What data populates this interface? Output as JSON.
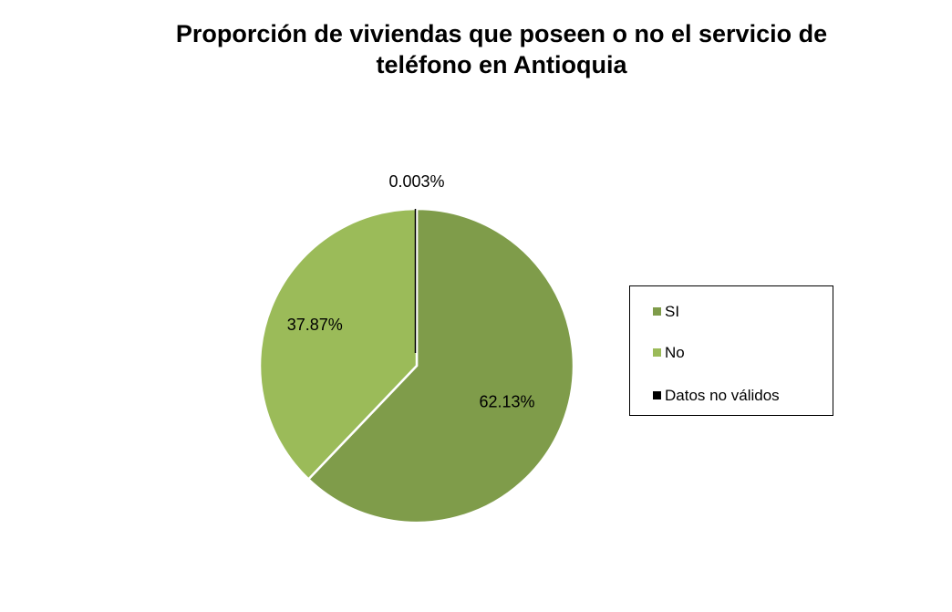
{
  "chart_data": {
    "type": "pie",
    "title_lines": [
      "Proporción de viviendas que poseen o no el servicio de",
      "teléfono en Antioquia"
    ],
    "legend_position": "right",
    "slices": [
      {
        "label": "SI",
        "value": 62.13,
        "data_label": "62.13%",
        "color": "#7f9c4a"
      },
      {
        "label": "No",
        "value": 37.87,
        "data_label": "37.87%",
        "color": "#9bbb59"
      },
      {
        "label": "Datos no válidos",
        "value": 0.003,
        "data_label": "0.003%",
        "color": "#000000"
      }
    ]
  }
}
